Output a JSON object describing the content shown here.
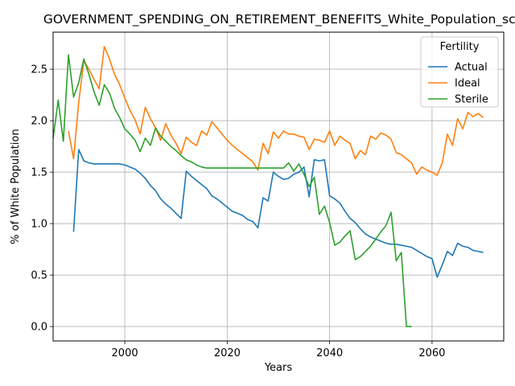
{
  "chart_data": {
    "type": "line",
    "title": "GOVERNMENT_SPENDING_ON_RETIREMENT_BENEFITS_White_Population_sco",
    "xlabel": "Years",
    "ylabel": "% of White Population",
    "xlim": [
      1986,
      2074
    ],
    "ylim": [
      -0.14,
      2.86
    ],
    "xticks": [
      2000,
      2020,
      2040,
      2060
    ],
    "yticks": [
      0.0,
      0.5,
      1.0,
      1.5,
      2.0,
      2.5
    ],
    "xtick_labels": [
      "2000",
      "2020",
      "2040",
      "2060"
    ],
    "ytick_labels": [
      "0.0",
      "0.5",
      "1.0",
      "1.5",
      "2.0",
      "2.5"
    ],
    "grid": true,
    "legend": {
      "title": "Fertility",
      "placement": "top-right"
    },
    "series": [
      {
        "name": "Actual",
        "color": "#1f77b4",
        "points": [
          [
            1990,
            0.92
          ],
          [
            1991,
            1.72
          ],
          [
            1992,
            1.61
          ],
          [
            1993,
            1.59
          ],
          [
            1994,
            1.58
          ],
          [
            1995,
            1.58
          ],
          [
            1996,
            1.58
          ],
          [
            1997,
            1.58
          ],
          [
            1998,
            1.58
          ],
          [
            1999,
            1.58
          ],
          [
            2000,
            1.57
          ],
          [
            2001,
            1.55
          ],
          [
            2002,
            1.53
          ],
          [
            2003,
            1.49
          ],
          [
            2004,
            1.44
          ],
          [
            2005,
            1.37
          ],
          [
            2006,
            1.32
          ],
          [
            2007,
            1.24
          ],
          [
            2008,
            1.19
          ],
          [
            2009,
            1.15
          ],
          [
            2010,
            1.1
          ],
          [
            2011,
            1.05
          ],
          [
            2012,
            1.51
          ],
          [
            2013,
            1.46
          ],
          [
            2014,
            1.42
          ],
          [
            2015,
            1.38
          ],
          [
            2016,
            1.34
          ],
          [
            2017,
            1.27
          ],
          [
            2018,
            1.24
          ],
          [
            2019,
            1.2
          ],
          [
            2020,
            1.16
          ],
          [
            2021,
            1.12
          ],
          [
            2022,
            1.1
          ],
          [
            2023,
            1.08
          ],
          [
            2024,
            1.04
          ],
          [
            2025,
            1.02
          ],
          [
            2026,
            0.96
          ],
          [
            2027,
            1.25
          ],
          [
            2028,
            1.22
          ],
          [
            2029,
            1.5
          ],
          [
            2030,
            1.46
          ],
          [
            2031,
            1.43
          ],
          [
            2032,
            1.44
          ],
          [
            2033,
            1.48
          ],
          [
            2034,
            1.5
          ],
          [
            2035,
            1.55
          ],
          [
            2036,
            1.26
          ],
          [
            2037,
            1.62
          ],
          [
            2038,
            1.61
          ],
          [
            2039,
            1.62
          ],
          [
            2040,
            1.27
          ],
          [
            2041,
            1.24
          ],
          [
            2042,
            1.2
          ],
          [
            2043,
            1.12
          ],
          [
            2044,
            1.05
          ],
          [
            2045,
            1.01
          ],
          [
            2046,
            0.95
          ],
          [
            2047,
            0.9
          ],
          [
            2048,
            0.87
          ],
          [
            2049,
            0.85
          ],
          [
            2050,
            0.83
          ],
          [
            2051,
            0.81
          ],
          [
            2052,
            0.8
          ],
          [
            2053,
            0.8
          ],
          [
            2054,
            0.79
          ],
          [
            2055,
            0.78
          ],
          [
            2056,
            0.77
          ],
          [
            2057,
            0.74
          ],
          [
            2058,
            0.71
          ],
          [
            2059,
            0.68
          ],
          [
            2060,
            0.66
          ],
          [
            2061,
            0.48
          ],
          [
            2062,
            0.6
          ],
          [
            2063,
            0.73
          ],
          [
            2064,
            0.69
          ],
          [
            2065,
            0.81
          ],
          [
            2066,
            0.78
          ],
          [
            2067,
            0.77
          ],
          [
            2068,
            0.74
          ],
          [
            2069,
            0.73
          ],
          [
            2070,
            0.72
          ]
        ]
      },
      {
        "name": "Ideal",
        "color": "#ff7f0e",
        "points": [
          [
            1989,
            1.9
          ],
          [
            1990,
            1.63
          ],
          [
            1991,
            2.18
          ],
          [
            1992,
            2.58
          ],
          [
            1993,
            2.5
          ],
          [
            1994,
            2.4
          ],
          [
            1995,
            2.31
          ],
          [
            1996,
            2.72
          ],
          [
            1997,
            2.6
          ],
          [
            1998,
            2.45
          ],
          [
            1999,
            2.35
          ],
          [
            2000,
            2.22
          ],
          [
            2001,
            2.1
          ],
          [
            2002,
            2.01
          ],
          [
            2003,
            1.87
          ],
          [
            2004,
            2.13
          ],
          [
            2005,
            2.02
          ],
          [
            2006,
            1.93
          ],
          [
            2007,
            1.81
          ],
          [
            2008,
            1.97
          ],
          [
            2009,
            1.86
          ],
          [
            2010,
            1.78
          ],
          [
            2011,
            1.68
          ],
          [
            2012,
            1.84
          ],
          [
            2013,
            1.79
          ],
          [
            2014,
            1.76
          ],
          [
            2015,
            1.9
          ],
          [
            2016,
            1.86
          ],
          [
            2017,
            1.99
          ],
          [
            2018,
            1.93
          ],
          [
            2019,
            1.87
          ],
          [
            2020,
            1.81
          ],
          [
            2021,
            1.76
          ],
          [
            2022,
            1.72
          ],
          [
            2023,
            1.68
          ],
          [
            2024,
            1.64
          ],
          [
            2025,
            1.6
          ],
          [
            2026,
            1.52
          ],
          [
            2027,
            1.78
          ],
          [
            2028,
            1.68
          ],
          [
            2029,
            1.89
          ],
          [
            2030,
            1.83
          ],
          [
            2031,
            1.9
          ],
          [
            2032,
            1.87
          ],
          [
            2033,
            1.87
          ],
          [
            2034,
            1.85
          ],
          [
            2035,
            1.84
          ],
          [
            2036,
            1.72
          ],
          [
            2037,
            1.82
          ],
          [
            2038,
            1.81
          ],
          [
            2039,
            1.79
          ],
          [
            2040,
            1.9
          ],
          [
            2041,
            1.76
          ],
          [
            2042,
            1.85
          ],
          [
            2043,
            1.81
          ],
          [
            2044,
            1.78
          ],
          [
            2045,
            1.63
          ],
          [
            2046,
            1.71
          ],
          [
            2047,
            1.67
          ],
          [
            2048,
            1.85
          ],
          [
            2049,
            1.82
          ],
          [
            2050,
            1.88
          ],
          [
            2051,
            1.86
          ],
          [
            2052,
            1.82
          ],
          [
            2053,
            1.69
          ],
          [
            2054,
            1.67
          ],
          [
            2055,
            1.63
          ],
          [
            2056,
            1.59
          ],
          [
            2057,
            1.48
          ],
          [
            2058,
            1.55
          ],
          [
            2059,
            1.52
          ],
          [
            2060,
            1.5
          ],
          [
            2061,
            1.47
          ],
          [
            2062,
            1.59
          ],
          [
            2063,
            1.87
          ],
          [
            2064,
            1.76
          ],
          [
            2065,
            2.02
          ],
          [
            2066,
            1.92
          ],
          [
            2067,
            2.08
          ],
          [
            2068,
            2.04
          ],
          [
            2069,
            2.07
          ],
          [
            2070,
            2.03
          ]
        ]
      },
      {
        "name": "Sterile",
        "color": "#2ca02c",
        "points": [
          [
            1986,
            1.83
          ],
          [
            1987,
            2.2
          ],
          [
            1988,
            1.8
          ],
          [
            1989,
            2.64
          ],
          [
            1990,
            2.23
          ],
          [
            1991,
            2.37
          ],
          [
            1992,
            2.6
          ],
          [
            1993,
            2.45
          ],
          [
            1994,
            2.28
          ],
          [
            1995,
            2.15
          ],
          [
            1996,
            2.35
          ],
          [
            1997,
            2.27
          ],
          [
            1998,
            2.12
          ],
          [
            1999,
            2.03
          ],
          [
            2000,
            1.92
          ],
          [
            2001,
            1.87
          ],
          [
            2002,
            1.81
          ],
          [
            2003,
            1.7
          ],
          [
            2004,
            1.83
          ],
          [
            2005,
            1.76
          ],
          [
            2006,
            1.93
          ],
          [
            2007,
            1.85
          ],
          [
            2008,
            1.8
          ],
          [
            2009,
            1.75
          ],
          [
            2010,
            1.71
          ],
          [
            2011,
            1.66
          ],
          [
            2012,
            1.62
          ],
          [
            2013,
            1.6
          ],
          [
            2014,
            1.57
          ],
          [
            2015,
            1.55
          ],
          [
            2016,
            1.54
          ],
          [
            2017,
            1.54
          ],
          [
            2018,
            1.54
          ],
          [
            2019,
            1.54
          ],
          [
            2020,
            1.54
          ],
          [
            2021,
            1.54
          ],
          [
            2022,
            1.54
          ],
          [
            2023,
            1.54
          ],
          [
            2024,
            1.54
          ],
          [
            2025,
            1.54
          ],
          [
            2026,
            1.54
          ],
          [
            2027,
            1.54
          ],
          [
            2028,
            1.54
          ],
          [
            2029,
            1.54
          ],
          [
            2030,
            1.54
          ],
          [
            2031,
            1.54
          ],
          [
            2032,
            1.59
          ],
          [
            2033,
            1.51
          ],
          [
            2034,
            1.58
          ],
          [
            2035,
            1.48
          ],
          [
            2036,
            1.36
          ],
          [
            2037,
            1.45
          ],
          [
            2038,
            1.09
          ],
          [
            2039,
            1.17
          ],
          [
            2040,
            1.01
          ],
          [
            2041,
            0.79
          ],
          [
            2042,
            0.82
          ],
          [
            2043,
            0.88
          ],
          [
            2044,
            0.93
          ],
          [
            2045,
            0.65
          ],
          [
            2046,
            0.68
          ],
          [
            2047,
            0.73
          ],
          [
            2048,
            0.78
          ],
          [
            2049,
            0.85
          ],
          [
            2050,
            0.92
          ],
          [
            2051,
            0.98
          ],
          [
            2052,
            1.11
          ],
          [
            2053,
            0.64
          ],
          [
            2054,
            0.72
          ],
          [
            2055,
            0.0
          ],
          [
            2056,
            0.0
          ]
        ]
      }
    ]
  }
}
